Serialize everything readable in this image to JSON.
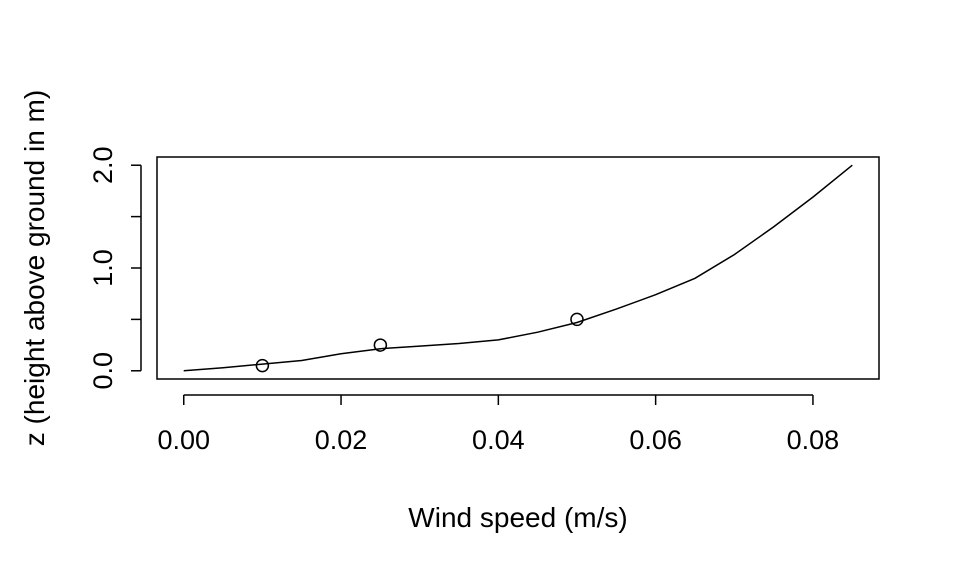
{
  "chart_data": {
    "type": "line",
    "title": "",
    "xlabel": "Wind speed (m/s)",
    "ylabel": "z (height above ground in m)",
    "xlim": [
      -0.0034,
      0.0884
    ],
    "ylim": [
      -0.08,
      2.08
    ],
    "x_ticks": [
      0.0,
      0.02,
      0.04,
      0.06,
      0.08
    ],
    "x_tick_labels": [
      "0.00",
      "0.02",
      "0.04",
      "0.06",
      "0.08"
    ],
    "y_ticks": [
      0.0,
      0.5,
      1.0,
      1.5,
      2.0
    ],
    "y_tick_labels": [
      "0.0",
      "",
      "1.0",
      "",
      "2.0"
    ],
    "grid": false,
    "series": [
      {
        "kind": "line",
        "x": [
          0.0,
          0.005,
          0.01,
          0.015,
          0.02,
          0.025,
          0.03,
          0.035,
          0.04,
          0.045,
          0.05,
          0.055,
          0.06,
          0.065,
          0.07,
          0.075,
          0.08,
          0.085
        ],
        "y": [
          0.0,
          0.03,
          0.065,
          0.1,
          0.165,
          0.215,
          0.24,
          0.265,
          0.3,
          0.375,
          0.47,
          0.6,
          0.74,
          0.9,
          1.13,
          1.4,
          1.69,
          2.0
        ]
      },
      {
        "kind": "points",
        "x": [
          0.01,
          0.025,
          0.05
        ],
        "y": [
          0.05,
          0.25,
          0.5
        ]
      }
    ]
  }
}
